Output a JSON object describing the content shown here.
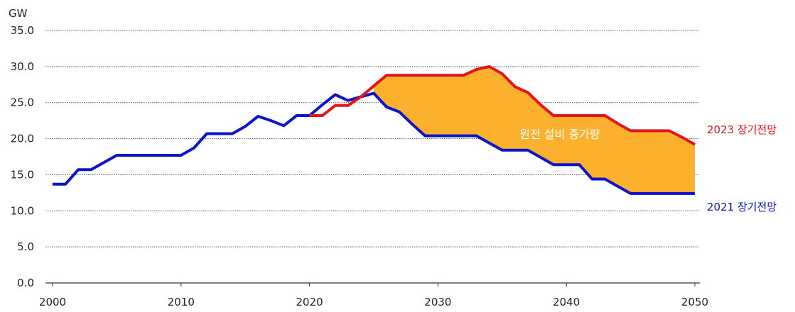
{
  "chart_data": {
    "type": "line",
    "ylabel": "GW",
    "ylim": [
      0,
      35
    ],
    "xlim": [
      2000,
      2050
    ],
    "x_ticks": [
      "2000",
      "2010",
      "2020",
      "2030",
      "2040",
      "2050"
    ],
    "y_ticks": [
      "0.0",
      "5.0",
      "10.0",
      "15.0",
      "20.0",
      "25.0",
      "30.0",
      "35.0"
    ],
    "grid": "horizontal-dotted",
    "fill_label": "원전 설비 증가량",
    "fill_color": "#FBB12E",
    "series": [
      {
        "name": "2021 장기전망",
        "color": "#0A14CC",
        "x": [
          2000,
          2001,
          2002,
          2003,
          2004,
          2005,
          2006,
          2007,
          2008,
          2009,
          2010,
          2011,
          2012,
          2013,
          2014,
          2015,
          2016,
          2017,
          2018,
          2019,
          2020,
          2021,
          2022,
          2023,
          2024,
          2025,
          2026,
          2027,
          2028,
          2029,
          2030,
          2031,
          2032,
          2033,
          2034,
          2035,
          2036,
          2037,
          2038,
          2039,
          2040,
          2041,
          2042,
          2043,
          2044,
          2045,
          2046,
          2047,
          2048,
          2049,
          2050
        ],
        "y": [
          13.7,
          13.7,
          15.7,
          15.7,
          16.7,
          17.7,
          17.7,
          17.7,
          17.7,
          17.7,
          17.7,
          18.7,
          20.7,
          20.7,
          20.7,
          21.7,
          23.1,
          22.5,
          21.8,
          23.2,
          23.2,
          24.7,
          26.1,
          25.3,
          25.8,
          26.3,
          24.4,
          23.7,
          22.0,
          20.4,
          20.4,
          20.4,
          20.4,
          20.4,
          19.4,
          18.4,
          18.4,
          18.4,
          17.4,
          16.4,
          16.4,
          16.4,
          14.4,
          14.4,
          13.4,
          12.4,
          12.4,
          12.4,
          12.4,
          12.4,
          12.4
        ]
      },
      {
        "name": "2023 장기전망",
        "color": "#E8141B",
        "x": [
          2020,
          2021,
          2022,
          2023,
          2024,
          2025,
          2026,
          2027,
          2028,
          2029,
          2030,
          2031,
          2032,
          2033,
          2034,
          2035,
          2036,
          2037,
          2038,
          2039,
          2040,
          2041,
          2042,
          2043,
          2044,
          2045,
          2046,
          2047,
          2048,
          2049,
          2050
        ],
        "y": [
          23.2,
          23.2,
          24.6,
          24.6,
          25.8,
          27.3,
          28.8,
          28.8,
          28.8,
          28.8,
          28.8,
          28.8,
          28.8,
          29.6,
          30.0,
          29.0,
          27.2,
          26.4,
          24.7,
          23.2,
          23.2,
          23.2,
          23.2,
          23.2,
          22.1,
          21.1,
          21.1,
          21.1,
          21.1,
          20.2,
          19.2
        ]
      }
    ]
  }
}
